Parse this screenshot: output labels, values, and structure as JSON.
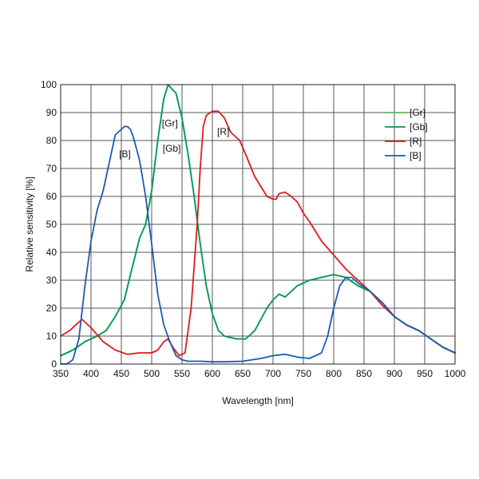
{
  "chart_data": {
    "type": "line",
    "xlabel": "Wavelength [nm]",
    "ylabel": "Relative sensitivity [%]",
    "xlim": [
      350,
      1000
    ],
    "ylim": [
      0,
      100
    ],
    "x_ticks": [
      350,
      400,
      450,
      500,
      550,
      600,
      650,
      700,
      750,
      800,
      850,
      900,
      950,
      1000
    ],
    "y_ticks": [
      0,
      10,
      20,
      30,
      40,
      50,
      60,
      70,
      80,
      90,
      100
    ],
    "grid": true,
    "legend_position": "top-right",
    "series": [
      {
        "name": "[Gr]",
        "color": "#5cb85c",
        "x": [
          350,
          370,
          390,
          410,
          425,
          440,
          455,
          465,
          480,
          490,
          500,
          510,
          520,
          527,
          535,
          540,
          550,
          560,
          570,
          580,
          590,
          600,
          610,
          620,
          640,
          655,
          670,
          690,
          700,
          710,
          720,
          730,
          740,
          760,
          780,
          800,
          810,
          820,
          840,
          860,
          880,
          900,
          920,
          940,
          960,
          980,
          1000
        ],
        "y": [
          3,
          5,
          8,
          10,
          12,
          17,
          23,
          32,
          45,
          50,
          62,
          80,
          95,
          100,
          98,
          97,
          88,
          75,
          60,
          43,
          28,
          18,
          12,
          10,
          9,
          9,
          12,
          20,
          23,
          25,
          24,
          26,
          28,
          30,
          31,
          32,
          31.5,
          31,
          28,
          26,
          22,
          17,
          14,
          12,
          9,
          6,
          4
        ]
      },
      {
        "name": "[Gb]",
        "color": "#009a5a",
        "x": [
          350,
          370,
          390,
          410,
          425,
          440,
          455,
          465,
          480,
          490,
          500,
          510,
          520,
          527,
          535,
          540,
          550,
          560,
          570,
          580,
          590,
          600,
          610,
          620,
          640,
          655,
          670,
          690,
          700,
          710,
          720,
          730,
          740,
          760,
          780,
          800,
          810,
          820,
          840,
          860,
          880,
          900,
          920,
          940,
          960,
          980,
          1000
        ],
        "y": [
          3,
          5,
          8,
          10,
          12,
          17,
          23,
          32,
          45,
          50,
          62,
          80,
          95,
          100,
          98,
          97,
          88,
          75,
          60,
          43,
          28,
          18,
          12,
          10,
          9,
          9,
          12,
          20,
          23,
          25,
          24,
          26,
          28,
          30,
          31,
          32,
          31.5,
          31,
          28,
          26,
          22,
          17,
          14,
          12,
          9,
          6,
          4
        ]
      },
      {
        "name": "[R]",
        "color": "#e0191f",
        "x": [
          350,
          365,
          385,
          400,
          420,
          440,
          460,
          480,
          500,
          510,
          520,
          527,
          535,
          545,
          555,
          565,
          575,
          580,
          585,
          590,
          600,
          610,
          620,
          630,
          645,
          655,
          670,
          690,
          700,
          705,
          710,
          720,
          730,
          740,
          750,
          760,
          780,
          800,
          820,
          840,
          860,
          880,
          900,
          920,
          940,
          960,
          980,
          1000
        ],
        "y": [
          10,
          12,
          16,
          13,
          8,
          5,
          3.5,
          4,
          4,
          5,
          8,
          9,
          6,
          3,
          4,
          20,
          50,
          70,
          85,
          89,
          90.5,
          90.5,
          88,
          83,
          80,
          75,
          67,
          60,
          59,
          59,
          61,
          61.5,
          60,
          58,
          54,
          51,
          44,
          39,
          34,
          30,
          26,
          21,
          17,
          14,
          12,
          9,
          6,
          4
        ]
      },
      {
        "name": "[B]",
        "color": "#1a5cad",
        "x": [
          350,
          360,
          370,
          380,
          390,
          400,
          410,
          420,
          430,
          440,
          450,
          455,
          460,
          465,
          470,
          480,
          490,
          500,
          510,
          520,
          530,
          540,
          550,
          560,
          570,
          580,
          600,
          620,
          650,
          680,
          700,
          720,
          740,
          760,
          780,
          790,
          800,
          810,
          820,
          830,
          840,
          860,
          880,
          900,
          920,
          940,
          960,
          980,
          1000
        ],
        "y": [
          0,
          0,
          1.5,
          9,
          28,
          44,
          55,
          62,
          72,
          82,
          84,
          85,
          85,
          84,
          81,
          73,
          60,
          43,
          25,
          14,
          8,
          3,
          1.5,
          1,
          1,
          1,
          0.8,
          0.8,
          1,
          2,
          3,
          3.5,
          2.5,
          2,
          4,
          10,
          20,
          28,
          31,
          31,
          29,
          26,
          22,
          17,
          14,
          12,
          9,
          6,
          4
        ]
      }
    ],
    "annotations": [
      {
        "text": "[B]",
        "x": 456,
        "y": 74
      },
      {
        "text": "[Gr]",
        "x": 530,
        "y": 85
      },
      {
        "text": "[Gb]",
        "x": 533,
        "y": 76
      },
      {
        "text": "[R]",
        "x": 618,
        "y": 82
      }
    ]
  }
}
